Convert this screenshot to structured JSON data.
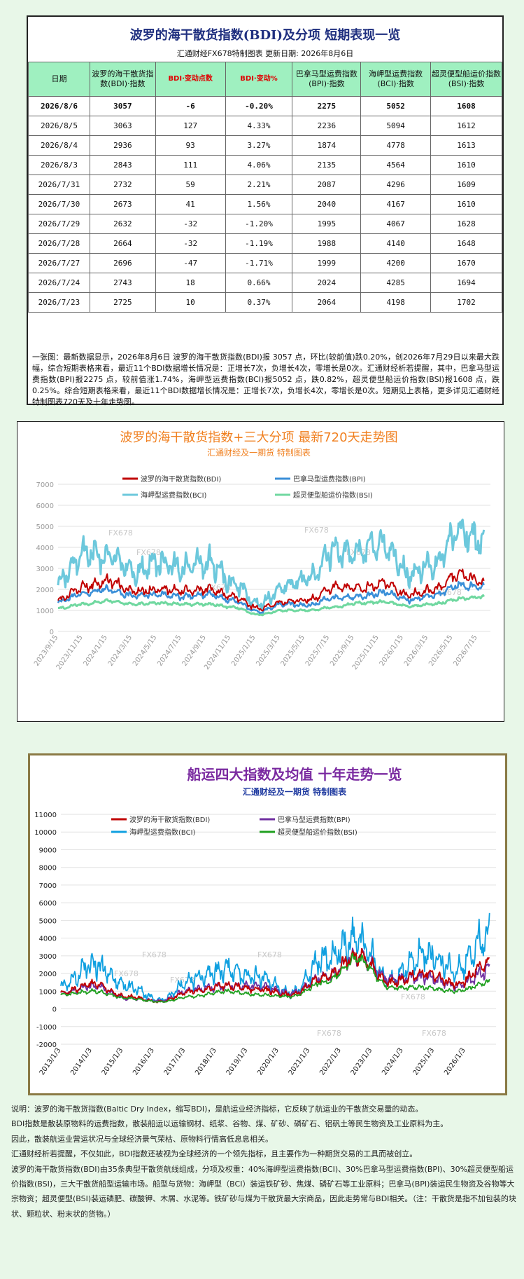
{
  "table": {
    "title": "波罗的海干散货指数(BDI)及分项  短期表现一览",
    "subtitle": "汇通财经FX678特制图表      更新日期: 2026年8月6日",
    "headers": [
      "日期",
      "波罗的海干散货指数(BDI)·指数",
      "BDI·变动点数",
      "BDI·变动%",
      "巴拿马型运费指数(BPI)·指数",
      "海岬型运费指数(BCI)·指数",
      "超灵便型船运价指数(BSI)·指数"
    ],
    "rows": [
      [
        "2026/8/6",
        "3057",
        "-6",
        "-0.20%",
        "2275",
        "5052",
        "1608"
      ],
      [
        "2026/8/5",
        "3063",
        "127",
        "4.33%",
        "2236",
        "5094",
        "1612"
      ],
      [
        "2026/8/4",
        "2936",
        "93",
        "3.27%",
        "1874",
        "4778",
        "1613"
      ],
      [
        "2026/8/3",
        "2843",
        "111",
        "4.06%",
        "2135",
        "4564",
        "1610"
      ],
      [
        "2026/7/31",
        "2732",
        "59",
        "2.21%",
        "2087",
        "4296",
        "1609"
      ],
      [
        "2026/7/30",
        "2673",
        "41",
        "1.56%",
        "2040",
        "4167",
        "1610"
      ],
      [
        "2026/7/29",
        "2632",
        "-32",
        "-1.20%",
        "1995",
        "4067",
        "1628"
      ],
      [
        "2026/7/28",
        "2664",
        "-32",
        "-1.19%",
        "1988",
        "4140",
        "1648"
      ],
      [
        "2026/7/27",
        "2696",
        "-47",
        "-1.71%",
        "1999",
        "4200",
        "1670"
      ],
      [
        "2026/7/24",
        "2743",
        "18",
        "0.66%",
        "2024",
        "4285",
        "1694"
      ],
      [
        "2026/7/23",
        "2725",
        "10",
        "0.37%",
        "2064",
        "4198",
        "1702"
      ]
    ],
    "note": "一张图：最新数据显示，2026年8月6日 波罗的海干散货指数(BDI)报 3057 点，环比(较前值)跌0.20%，创2026年7月29日以来最大跌幅，综合短期表格来看，最近11个BDI数据增长情况是：正增长7次，负增长4次，零增长是0次。汇通财经析若提醒，其中，巴拿马型运费指数(BPI)报2275 点，较前值涨1.74%，海岬型运费指数(BCI)报5052 点，跌0.82%，超灵便型船运价指数(BSI)报1608 点，跌0.25%。综合短期表格来看，最近11个BDI数据增长情况是：正增长7次，负增长4次，零增长是0次。短期见上表格，更多详见汇通财经特制图表720天及十年走势图。"
  },
  "chart1": {
    "title": "波罗的海干散货指数+三大分项  最新720天走势图",
    "subtitle": "汇通财经及一期货  特制图表",
    "watermark": "FX678",
    "colors": {
      "BDI": "#c00000",
      "BPI": "#3a8fd8",
      "BCI": "#6cc8dc",
      "BSI": "#70d8a0"
    }
  },
  "chart2": {
    "title": "船运四大指数及均值 十年走势一览",
    "subtitle": "汇通财经及一期货 特制图表",
    "watermark": "FX678",
    "colors": {
      "BDI": "#c00000",
      "BPI": "#7030a0",
      "BCI": "#10a0e0",
      "BSI": "#20a020"
    }
  },
  "chart_data": [
    {
      "type": "line",
      "title": "波罗的海干散货指数+三大分项  最新720天走势图",
      "subtitle": "汇通财经及一期货  特制图表",
      "x": [
        "2023/9/15",
        "2023/11/15",
        "2024/1/15",
        "2024/3/15",
        "2024/5/15",
        "2024/7/15",
        "2024/9/15",
        "2024/11/15",
        "2025/1/15",
        "2025/3/15",
        "2025/5/15",
        "2025/7/15",
        "2025/9/15",
        "2025/11/15",
        "2026/1/15",
        "2026/3/15",
        "2026/5/15",
        "2026/7/15"
      ],
      "ylim": [
        0,
        7000
      ],
      "yticks": [
        0,
        1000,
        2000,
        3000,
        4000,
        5000,
        6000,
        7000
      ],
      "grid": true,
      "legend": "top",
      "series": [
        {
          "name": "波罗的海干散货指数(BDI)",
          "values": [
            1500,
            2100,
            2400,
            1900,
            2000,
            1950,
            2000,
            1650,
            1100,
            1400,
            1500,
            2100,
            2050,
            2300,
            1750,
            2000,
            2700,
            2300
          ]
        },
        {
          "name": "巴拿马型运费指数(BPI)",
          "values": [
            1400,
            1800,
            2000,
            1700,
            1750,
            1650,
            1750,
            1450,
            950,
            1300,
            1250,
            1600,
            1650,
            1850,
            1500,
            1700,
            2200,
            2100
          ]
        },
        {
          "name": "海岬型运费指数(BCI)",
          "values": [
            2400,
            3700,
            3600,
            2800,
            3300,
            3000,
            3300,
            2300,
            1300,
            2100,
            2500,
            3800,
            3700,
            4200,
            2700,
            3200,
            4800,
            4200
          ]
        },
        {
          "name": "超灵便型船运价指数(BSI)",
          "values": [
            1100,
            1300,
            1450,
            1300,
            1350,
            1300,
            1300,
            1150,
            800,
            1000,
            1000,
            1150,
            1350,
            1400,
            1200,
            1300,
            1550,
            1650
          ]
        }
      ]
    },
    {
      "type": "line",
      "title": "船运四大指数及均值 十年走势一览",
      "subtitle": "汇通财经及一期货 特制图表",
      "x": [
        "2013/1/3",
        "2014/1/3",
        "2015/1/3",
        "2016/1/3",
        "2017/1/3",
        "2018/1/3",
        "2019/1/3",
        "2020/1/3",
        "2021/1/3",
        "2022/1/3",
        "2023/1/3",
        "2024/1/3",
        "2025/1/3",
        "2026/1/3"
      ],
      "ylim": [
        -2000,
        11000
      ],
      "yticks": [
        -2000,
        -1000,
        0,
        1000,
        2000,
        3000,
        4000,
        5000,
        6000,
        7000,
        8000,
        9000,
        10000,
        11000
      ],
      "grid": true,
      "legend": "top",
      "series": [
        {
          "name": "波罗的海干散货指数(BDI)",
          "values": [
            900,
            1400,
            700,
            400,
            1000,
            1300,
            1100,
            800,
            1800,
            3000,
            1500,
            2000,
            1400,
            2600
          ]
        },
        {
          "name": "巴拿马型运费指数(BPI)",
          "values": [
            900,
            1300,
            600,
            450,
            1100,
            1300,
            1300,
            900,
            1800,
            3000,
            1700,
            1800,
            1300,
            2200
          ]
        },
        {
          "name": "海岬型运费指数(BCI)",
          "values": [
            1300,
            2500,
            1300,
            500,
            1700,
            2200,
            1800,
            900,
            2800,
            4000,
            1600,
            3100,
            2200,
            4300
          ]
        },
        {
          "name": "超灵便型船运价指数(BSI)",
          "values": [
            800,
            1000,
            600,
            400,
            700,
            1000,
            800,
            700,
            1500,
            2800,
            1200,
            1200,
            1000,
            1500
          ]
        }
      ]
    }
  ],
  "bottom_text": [
    "说明：波罗的海干散货指数(Baltic Dry Index，缩写BDI)，是航运业经济指标，它反映了航运业的干散货交易量的动态。",
    "BDI指数是散装原物料的运费指数，散装船运以运输钢材、纸浆、谷物、煤、矿砂、磷矿石、铝矾土等民生物资及工业原料为主。",
    "因此，散装航运业营运状况与全球经济景气荣枯、原物料行情高低息息相关。",
    "汇通财经析若提醒，不仅如此，BDI指数还被视为全球经济的一个领先指标，且主要作为一种期货交易的工具而被创立。",
    "波罗的海干散货指数(BDI)由35条典型干散货航线组成，分项及权重：40%海岬型运费指数(BCI)、30%巴拿马型运费指数(BPI)、30%超灵便型船运价指数(BSI)，三大干散货船型运输市场。船型与货物：海岬型（BCI）装运铁矿砂、焦煤、磷矿石等工业原料；巴拿马(BPI)装运民生物资及谷物等大宗物资；超灵便型(BSI)装运磷肥、碳酸钾、木屑、水泥等。铁矿砂与煤为干散货最大宗商品，因此走势常与BDI相关。（注：干散货是指不加包装的块状、颗粒状、粉末状的货物。）"
  ]
}
